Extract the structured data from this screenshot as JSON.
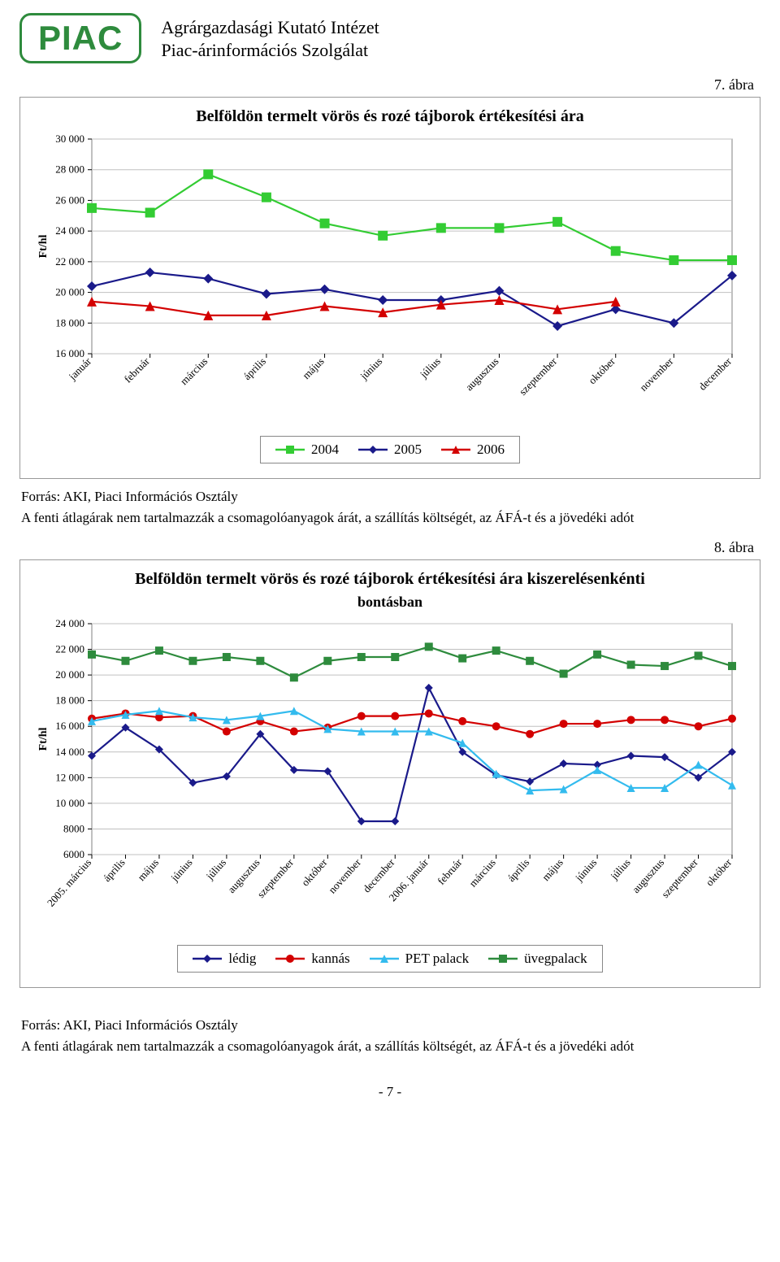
{
  "header": {
    "badge": "PIAC",
    "line1": "Agrárgazdasági Kutató Intézet",
    "line2": "Piac-árinformációs Szolgálat"
  },
  "fig7": {
    "label": "7. ábra",
    "title": "Belföldön termelt vörös és rozé tájborok értékesítési ára",
    "type": "line",
    "ylabel": "Ft/hl",
    "ylim": [
      16000,
      30000
    ],
    "ytick_step": 2000,
    "background_color": "#ffffff",
    "grid_color": "#c0c0c0",
    "frame_color": "#808080",
    "categories": [
      "január",
      "február",
      "március",
      "április",
      "május",
      "június",
      "július",
      "augusztus",
      "szeptember",
      "október",
      "november",
      "december"
    ],
    "series": [
      {
        "name": "2004",
        "color": "#33cc33",
        "marker": "square",
        "values": [
          25500,
          25200,
          27700,
          26200,
          24500,
          23700,
          24200,
          24200,
          24600,
          22700,
          22100,
          22100
        ]
      },
      {
        "name": "2005",
        "color": "#1a1a8a",
        "marker": "diamond",
        "values": [
          20400,
          21300,
          20900,
          19900,
          20200,
          19500,
          19500,
          20100,
          17800,
          18900,
          18000,
          21100
        ]
      },
      {
        "name": "2006",
        "color": "#d30000",
        "marker": "triangle",
        "values": [
          19400,
          19100,
          18500,
          18500,
          19100,
          18700,
          19200,
          19500,
          18900,
          19400,
          null,
          null
        ]
      }
    ],
    "tick_fontsize": 13,
    "label_fontsize": 14,
    "marker_size": 6,
    "line_width": 2.2
  },
  "fig8": {
    "label": "8. ábra",
    "title": "Belföldön termelt vörös és rozé tájborok értékesítési ára kiszerelésenkénti",
    "subtitle": "bontásban",
    "type": "line",
    "ylabel": "Ft/hl",
    "ylim": [
      6000,
      24000
    ],
    "ytick_step": 2000,
    "background_color": "#ffffff",
    "grid_color": "#c0c0c0",
    "frame_color": "#808080",
    "categories": [
      "2005. március",
      "április",
      "május",
      "június",
      "július",
      "augusztus",
      "szeptember",
      "október",
      "november",
      "december",
      "2006. január",
      "február",
      "március",
      "április",
      "május",
      "június",
      "július",
      "augusztus",
      "szeptember",
      "október"
    ],
    "series": [
      {
        "name": "lédig",
        "color": "#1a1a8a",
        "marker": "diamond",
        "values": [
          13700,
          15900,
          14200,
          11600,
          12100,
          15400,
          12600,
          12500,
          8600,
          8600,
          19000,
          14000,
          12200,
          11700,
          13100,
          13000,
          13700,
          13600,
          12000,
          14000
        ]
      },
      {
        "name": "kannás",
        "color": "#d30000",
        "marker": "circle",
        "values": [
          16600,
          17000,
          16700,
          16800,
          15600,
          16400,
          15600,
          15900,
          16800,
          16800,
          17000,
          16400,
          16000,
          15400,
          16200,
          16200,
          16500,
          16500,
          16000,
          16600
        ]
      },
      {
        "name": "PET palack",
        "color": "#33bbee",
        "marker": "triangle",
        "values": [
          16400,
          16900,
          17200,
          16700,
          16500,
          16800,
          17200,
          15800,
          15600,
          15600,
          15600,
          14700,
          12300,
          11000,
          11100,
          12600,
          11200,
          11200,
          13000,
          11400
        ]
      },
      {
        "name": "üvegpalack",
        "color": "#2e8b3d",
        "marker": "square",
        "values": [
          21600,
          21100,
          21900,
          21100,
          21400,
          21100,
          19800,
          21100,
          21400,
          21400,
          22200,
          21300,
          21900,
          21100,
          20100,
          21600,
          20800,
          20700,
          21500,
          20700
        ]
      }
    ],
    "tick_fontsize": 13,
    "label_fontsize": 14,
    "marker_size": 5,
    "line_width": 2.2
  },
  "caption": {
    "line1": "Forrás: AKI, Piaci Információs Osztály",
    "line2": "A fenti átlagárak nem tartalmazzák a csomagolóanyagok árát, a szállítás költségét, az ÁFÁ-t és a jövedéki adót"
  },
  "page_footer": "- 7 -"
}
